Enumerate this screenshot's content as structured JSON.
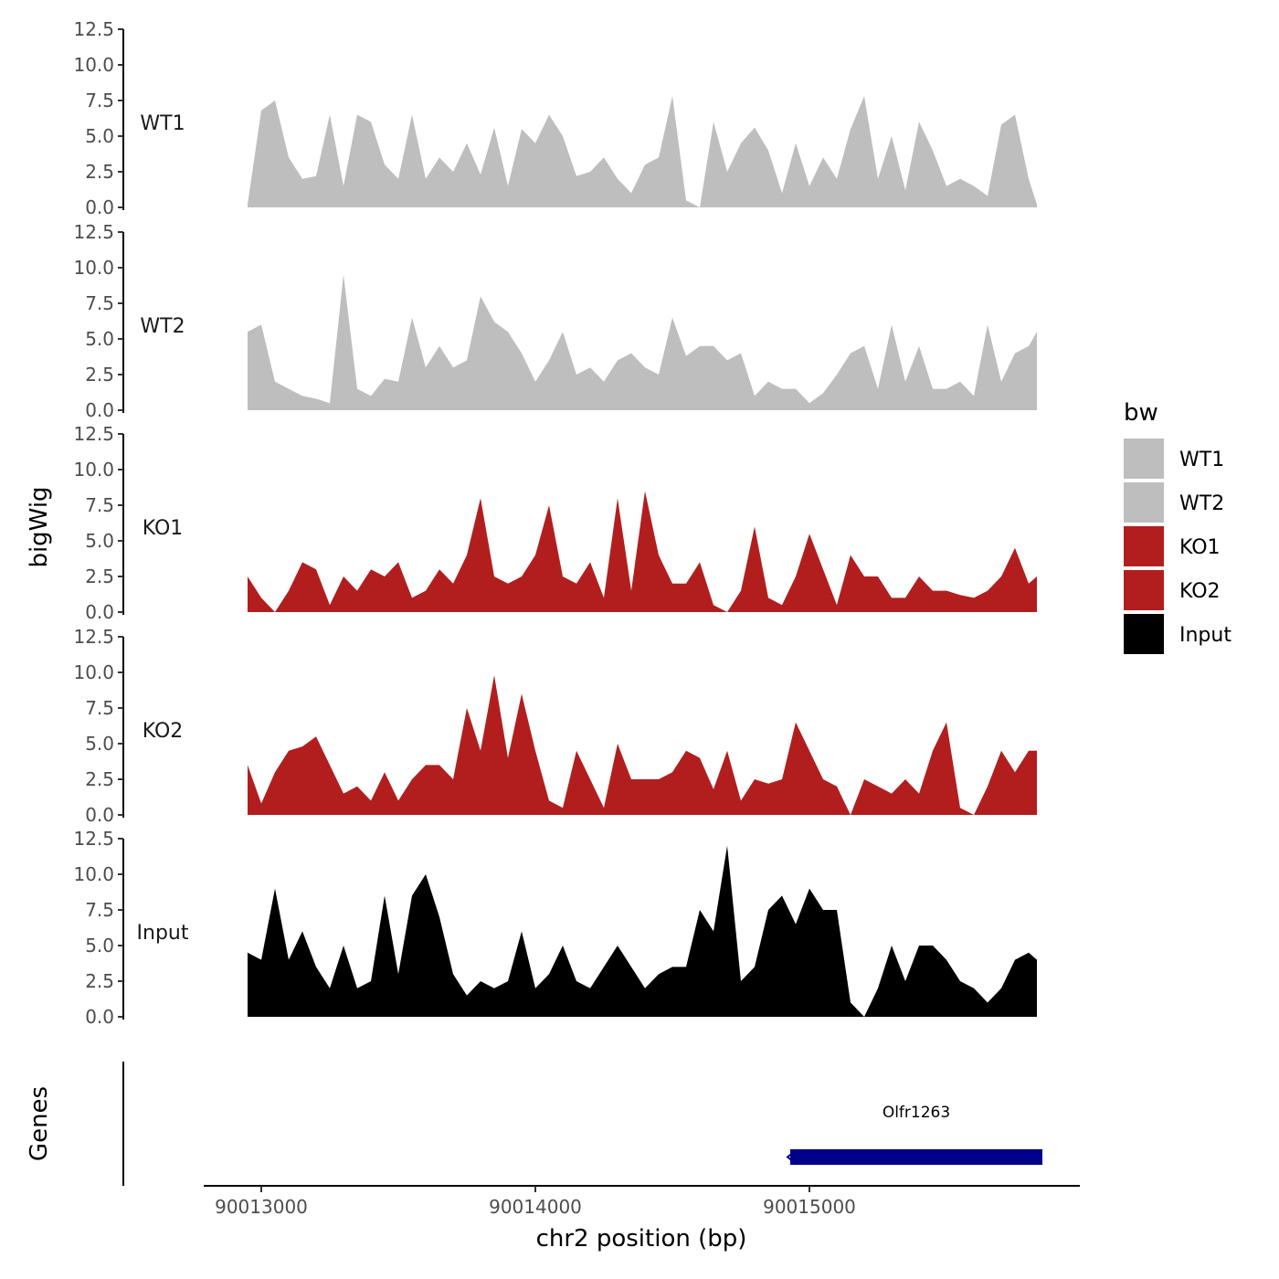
{
  "colors": {
    "WT": "#bebebe",
    "KO": "#b21e1e",
    "Input": "#000000",
    "gene": "#00008b",
    "axis": "#000000",
    "tick_text": "#4d4d4d"
  },
  "chart_data": {
    "type": "area",
    "ylabel": "bigWig",
    "xlabel": "chr2 position (bp)",
    "ylim": [
      0,
      12.5
    ],
    "yticks": [
      "0.0",
      "2.5",
      "5.0",
      "7.5",
      "10.0",
      "12.5"
    ],
    "xlim": [
      90012780,
      90016000
    ],
    "xticks": [
      {
        "value": 90013000,
        "label": "90013000"
      },
      {
        "value": 90014000,
        "label": "90014000"
      },
      {
        "value": 90015000,
        "label": "90015000"
      }
    ],
    "x": [
      90012950,
      90013000,
      90013050,
      90013100,
      90013150,
      90013200,
      90013250,
      90013300,
      90013350,
      90013400,
      90013450,
      90013500,
      90013550,
      90013600,
      90013650,
      90013700,
      90013750,
      90013800,
      90013850,
      90013900,
      90013950,
      90014000,
      90014050,
      90014100,
      90014150,
      90014200,
      90014250,
      90014300,
      90014350,
      90014400,
      90014450,
      90014500,
      90014550,
      90014600,
      90014650,
      90014700,
      90014750,
      90014800,
      90014850,
      90014900,
      90014950,
      90015000,
      90015050,
      90015100,
      90015150,
      90015200,
      90015250,
      90015300,
      90015350,
      90015400,
      90015450,
      90015500,
      90015550,
      90015600,
      90015650,
      90015700,
      90015750,
      90015800,
      90015830
    ],
    "series": [
      {
        "name": "WT1",
        "label": "WT1",
        "color_key": "WT",
        "values": [
          0.2,
          6.8,
          7.5,
          3.5,
          2.0,
          2.2,
          6.5,
          1.5,
          6.5,
          6.0,
          3.0,
          2.0,
          6.5,
          2.0,
          3.5,
          2.5,
          4.5,
          2.3,
          5.6,
          1.5,
          5.5,
          4.5,
          6.5,
          5.0,
          2.2,
          2.5,
          3.5,
          2.0,
          1.0,
          3.0,
          3.5,
          7.8,
          0.5,
          0.0,
          6.0,
          2.5,
          4.5,
          5.6,
          4.0,
          1.0,
          4.5,
          1.5,
          3.5,
          2.0,
          5.5,
          7.8,
          2.0,
          5.0,
          1.2,
          6.0,
          4.0,
          1.5,
          2.0,
          1.5,
          0.8,
          5.8,
          6.5,
          2.0,
          0.2
        ]
      },
      {
        "name": "WT2",
        "label": "WT2",
        "color_key": "WT",
        "values": [
          5.5,
          6.0,
          2.0,
          1.5,
          1.0,
          0.8,
          0.5,
          9.5,
          1.5,
          1.0,
          2.2,
          2.0,
          6.5,
          3.0,
          4.5,
          3.0,
          3.5,
          8.0,
          6.2,
          5.5,
          4.0,
          2.0,
          3.5,
          5.5,
          2.5,
          3.0,
          2.0,
          3.5,
          4.0,
          3.0,
          2.5,
          6.5,
          3.8,
          4.5,
          4.5,
          3.5,
          4.0,
          1.0,
          2.0,
          1.5,
          1.5,
          0.5,
          1.2,
          2.5,
          4.0,
          4.5,
          1.5,
          6.0,
          2.0,
          4.5,
          1.5,
          1.5,
          2.0,
          1.0,
          6.0,
          2.0,
          4.0,
          4.5,
          5.5
        ]
      },
      {
        "name": "KO1",
        "label": "KO1",
        "color_key": "KO",
        "values": [
          2.5,
          1.0,
          0.0,
          1.5,
          3.5,
          3.0,
          0.5,
          2.5,
          1.5,
          3.0,
          2.5,
          3.5,
          1.0,
          1.5,
          3.0,
          2.0,
          4.0,
          8.0,
          2.5,
          2.0,
          2.5,
          4.0,
          7.5,
          2.5,
          2.0,
          3.5,
          1.0,
          8.0,
          1.5,
          8.5,
          4.0,
          2.0,
          2.0,
          3.5,
          0.5,
          0.0,
          1.5,
          6.0,
          1.0,
          0.5,
          2.5,
          5.5,
          3.0,
          0.5,
          4.0,
          2.5,
          2.5,
          1.0,
          1.0,
          2.5,
          1.5,
          1.5,
          1.2,
          1.0,
          1.5,
          2.5,
          4.5,
          2.0,
          2.5
        ]
      },
      {
        "name": "KO2",
        "label": "KO2",
        "color_key": "KO",
        "values": [
          3.5,
          0.8,
          3.0,
          4.5,
          4.8,
          5.5,
          3.5,
          1.5,
          2.0,
          1.0,
          3.0,
          1.0,
          2.5,
          3.5,
          3.5,
          2.5,
          7.5,
          4.5,
          9.8,
          4.0,
          8.5,
          4.5,
          1.0,
          0.5,
          4.5,
          2.5,
          0.5,
          5.0,
          2.5,
          2.5,
          2.5,
          3.0,
          4.5,
          4.0,
          1.8,
          4.5,
          1.0,
          2.5,
          2.2,
          2.5,
          6.5,
          4.5,
          2.5,
          2.0,
          0.0,
          2.5,
          2.0,
          1.5,
          2.5,
          1.5,
          4.5,
          6.5,
          0.5,
          0.0,
          2.0,
          4.5,
          3.0,
          4.5,
          4.5
        ]
      },
      {
        "name": "Input",
        "label": "Input",
        "color_key": "Input",
        "values": [
          4.5,
          4.0,
          9.0,
          4.0,
          6.0,
          3.5,
          2.0,
          5.0,
          2.0,
          2.5,
          8.5,
          3.0,
          8.5,
          10.0,
          7.0,
          3.0,
          1.5,
          2.5,
          2.0,
          2.5,
          6.0,
          2.0,
          3.0,
          5.0,
          2.5,
          2.0,
          3.5,
          5.0,
          3.5,
          2.0,
          3.0,
          3.5,
          3.5,
          7.5,
          6.0,
          12.0,
          2.5,
          3.5,
          7.5,
          8.5,
          6.5,
          9.0,
          7.5,
          7.5,
          1.0,
          0.0,
          2.0,
          5.0,
          2.5,
          5.0,
          5.0,
          4.0,
          2.5,
          2.0,
          1.0,
          2.0,
          4.0,
          4.5,
          4.0
        ]
      }
    ],
    "genes_track": {
      "label": "Genes",
      "genes": [
        {
          "name": "Olfr1263",
          "start": 90014930,
          "end": 90015850,
          "strand": "-"
        }
      ]
    },
    "legend": {
      "title": "bw",
      "position": "right",
      "entries": [
        {
          "label": "WT1",
          "color_key": "WT"
        },
        {
          "label": "WT2",
          "color_key": "WT"
        },
        {
          "label": "KO1",
          "color_key": "KO"
        },
        {
          "label": "KO2",
          "color_key": "KO"
        },
        {
          "label": "Input",
          "color_key": "Input"
        }
      ]
    }
  }
}
